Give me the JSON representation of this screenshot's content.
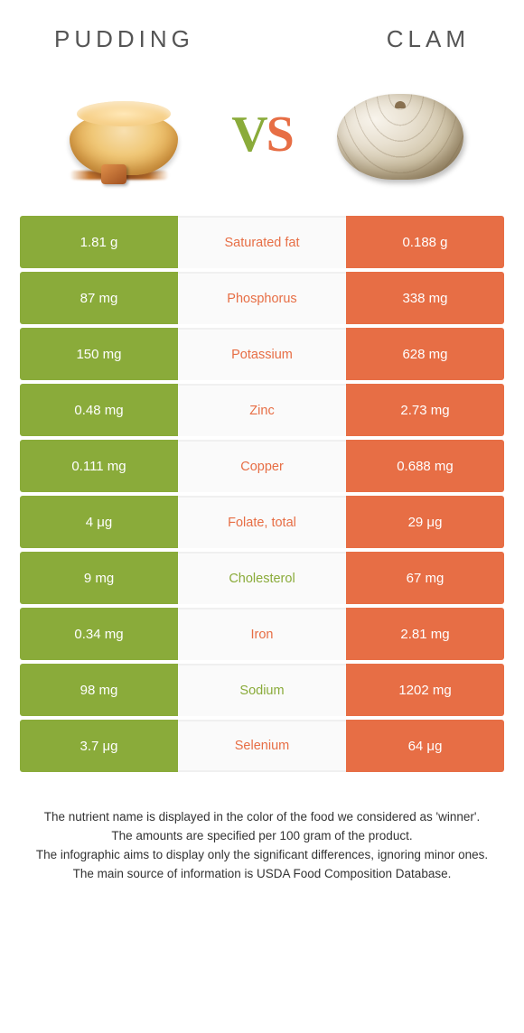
{
  "colors": {
    "green": "#8aab3a",
    "orange": "#e76e45",
    "mid_bg": "#fafafa"
  },
  "foods": {
    "left": "Pudding",
    "right": "Clam"
  },
  "vs": {
    "v": "V",
    "s": "S"
  },
  "rows": [
    {
      "left": "1.81 g",
      "label": "Saturated fat",
      "right": "0.188 g",
      "winner": "right"
    },
    {
      "left": "87 mg",
      "label": "Phosphorus",
      "right": "338 mg",
      "winner": "right"
    },
    {
      "left": "150 mg",
      "label": "Potassium",
      "right": "628 mg",
      "winner": "right"
    },
    {
      "left": "0.48 mg",
      "label": "Zinc",
      "right": "2.73 mg",
      "winner": "right"
    },
    {
      "left": "0.111 mg",
      "label": "Copper",
      "right": "0.688 mg",
      "winner": "right"
    },
    {
      "left": "4 μg",
      "label": "Folate, total",
      "right": "29 μg",
      "winner": "right"
    },
    {
      "left": "9 mg",
      "label": "Cholesterol",
      "right": "67 mg",
      "winner": "left"
    },
    {
      "left": "0.34 mg",
      "label": "Iron",
      "right": "2.81 mg",
      "winner": "right"
    },
    {
      "left": "98 mg",
      "label": "Sodium",
      "right": "1202 mg",
      "winner": "left"
    },
    {
      "left": "3.7 μg",
      "label": "Selenium",
      "right": "64 μg",
      "winner": "right"
    }
  ],
  "footer": {
    "l1": "The nutrient name is displayed in the color of the food we considered as 'winner'.",
    "l2": "The amounts are specified per 100 gram of the product.",
    "l3": "The infographic aims to display only the significant differences, ignoring minor ones.",
    "l4": "The main source of information is USDA Food Composition Database."
  }
}
